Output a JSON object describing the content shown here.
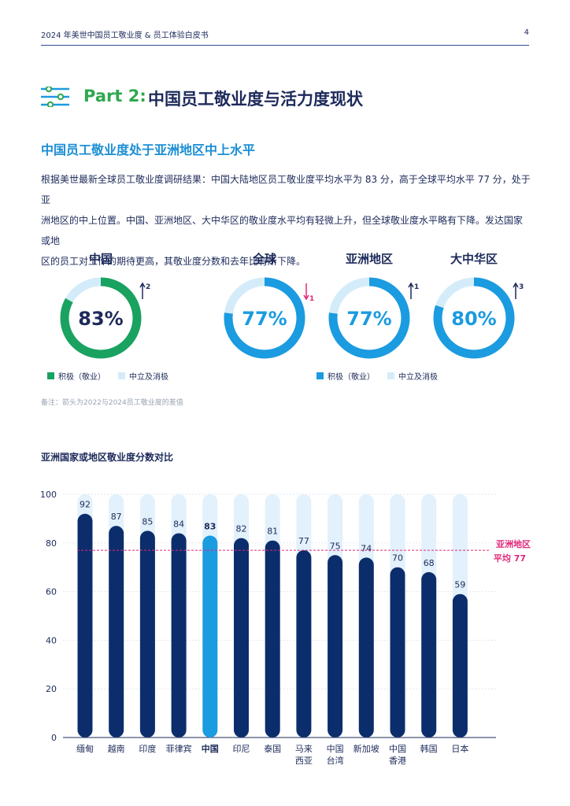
{
  "header": {
    "title": "2024 年美世中国员工敬业度 & 员工体验白皮书",
    "page_number": "4"
  },
  "part": {
    "label": "Part 2:",
    "title": "中国员工敬业度与活力度现状"
  },
  "section_title": "中国员工敬业度处于亚洲地区中上水平",
  "body_lines": [
    "根据美世最新全球员工敬业度调研结果：中国大陆地区员工敬业度平均水平为 83 分，高于全球平均水平 77 分，处于亚",
    "洲地区的中上位置。中国、亚洲地区、大中华区的敬业度水平均有轻微上升，但全球敬业度水平略有下降。发达国家或地",
    "区的员工对工作的期待更高，其敬业度分数和去年比有所下降。"
  ],
  "donuts": [
    {
      "title": "中国",
      "value": 83,
      "label": "83%",
      "change": "2",
      "direction": "up",
      "color": "#1aa260",
      "text_color": "#1d2a5a"
    },
    {
      "title": "全球",
      "value": 77,
      "label": "77%",
      "change": "1",
      "direction": "down",
      "color": "#1b9be0",
      "text_color": "#1b9be0"
    },
    {
      "title": "亚洲地区",
      "value": 77,
      "label": "77%",
      "change": "1",
      "direction": "up",
      "color": "#1b9be0",
      "text_color": "#1b9be0"
    },
    {
      "title": "大中华区",
      "value": 80,
      "label": "80%",
      "change": "3",
      "direction": "up",
      "color": "#1b9be0",
      "text_color": "#1b9be0"
    }
  ],
  "colors": {
    "china_engaged": "#1aa260",
    "engaged": "#1b9be0",
    "neutral": "#d4ecfa",
    "navy": "#0c2d6b",
    "highlight": "#1b9be0",
    "average_line": "#e0287a",
    "arrow_up": "#1d2a5a",
    "arrow_down": "#e0287a"
  },
  "legend_left": {
    "engaged": "积极（敬业）",
    "neutral": "中立及消极"
  },
  "legend_right": {
    "engaged": "积极（敬业）",
    "neutral": "中立及消极"
  },
  "note": "备注：箭头为2022与2024员工敬业度的差值",
  "chart_data": {
    "type": "bar",
    "title": "亚洲国家或地区敬业度分数对比",
    "categories": [
      "缅甸",
      "越南",
      "印度",
      "菲律宾",
      "中国",
      "印尼",
      "泰国",
      "马来西亚",
      "中国台湾",
      "新加坡",
      "中国香港",
      "韩国",
      "日本"
    ],
    "category_lines": [
      [
        "缅甸"
      ],
      [
        "越南"
      ],
      [
        "印度"
      ],
      [
        "菲律宾"
      ],
      [
        "中国"
      ],
      [
        "印尼"
      ],
      [
        "泰国"
      ],
      [
        "马来",
        "西亚"
      ],
      [
        "中国",
        "台湾"
      ],
      [
        "新加坡"
      ],
      [
        "中国",
        "香港"
      ],
      [
        "韩国"
      ],
      [
        "日本"
      ]
    ],
    "values": [
      92,
      87,
      85,
      84,
      83,
      82,
      81,
      77,
      75,
      74,
      70,
      68,
      59
    ],
    "highlight_index": 4,
    "ylim": [
      0,
      100
    ],
    "yticks": [
      0,
      20,
      40,
      60,
      80,
      100
    ],
    "reference_line": {
      "value": 77,
      "label_line1": "亚洲地区",
      "label_line2": "平均 77"
    }
  }
}
